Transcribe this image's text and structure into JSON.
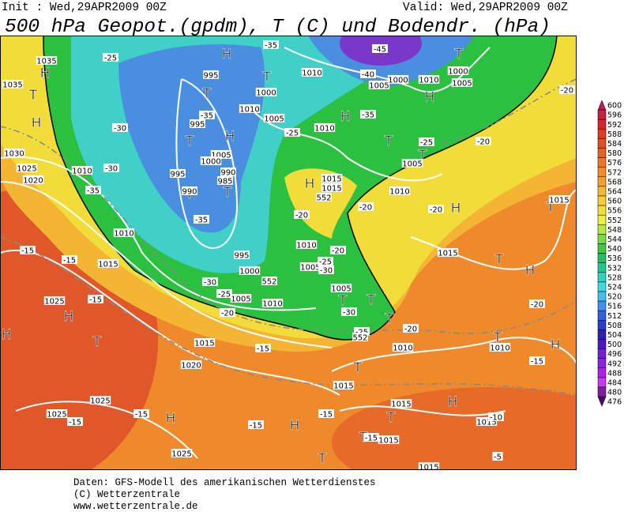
{
  "header": {
    "init": "Init : Wed,29APR2009 00Z",
    "valid": "Valid: Wed,29APR2009 00Z",
    "title": "500 hPa Geopot.(gpdm), T (C) und Bodendr. (hPa)"
  },
  "colorbar": {
    "labels": [
      600,
      596,
      592,
      588,
      584,
      580,
      576,
      572,
      568,
      564,
      560,
      556,
      552,
      548,
      544,
      540,
      536,
      532,
      528,
      524,
      520,
      516,
      512,
      508,
      504,
      500,
      496,
      492,
      488,
      484,
      480,
      476
    ],
    "colors": [
      "#b81c5a",
      "#c82040",
      "#d42828",
      "#dc3c20",
      "#e05020",
      "#e46424",
      "#ea7828",
      "#f08c2c",
      "#f4a030",
      "#f8b834",
      "#f8cc38",
      "#f4e03c",
      "#e8f040",
      "#b8e840",
      "#80d840",
      "#40c840",
      "#20c060",
      "#20c890",
      "#30d0c0",
      "#40d8e0",
      "#40c0f0",
      "#4090f0",
      "#3060e0",
      "#2840c8",
      "#3020b0",
      "#5018c0",
      "#7020d0",
      "#9020e0",
      "#b020e8",
      "#c838f0",
      "#8020a0",
      "#500860"
    ]
  },
  "map_labels": [
    "H",
    "T",
    "H",
    "T",
    "H",
    "T",
    "H",
    "H",
    "T",
    "T",
    "T",
    "H",
    "T",
    "T",
    "T",
    "H",
    "H",
    "T",
    "H",
    "T",
    "H",
    "H",
    "T",
    "T",
    "T",
    "T",
    "H",
    "T",
    "T",
    "H",
    "H",
    "T",
    "H",
    "T",
    "T",
    "1035",
    "1035",
    "1030",
    "1025",
    "1020",
    "1010",
    "1010",
    "1015",
    "1025",
    "1020",
    "1015",
    "1025",
    "1025",
    "1025",
    "995",
    "995",
    "1005",
    "1000",
    "995",
    "990",
    "985",
    "990",
    "995",
    "1000",
    "1005",
    "1010",
    "1010",
    "1000",
    "1010",
    "1005",
    "1010",
    "1005",
    "1000",
    "1010",
    "1000",
    "1005",
    "1005",
    "1010",
    "1015",
    "1015",
    "1010",
    "1005",
    "1005",
    "1015",
    "1015",
    "1010",
    "1010",
    "1015",
    "1015",
    "1015",
    "1015",
    "1015",
    "-25",
    "-30",
    "-30",
    "-35",
    "-35",
    "-35",
    "-25",
    "-35",
    "-40",
    "-45",
    "-35",
    "-25",
    "-20",
    "-20",
    "-20",
    "-20",
    "-20",
    "-20",
    "-25",
    "-30",
    "-30",
    "-25",
    "-20",
    "-30",
    "-25",
    "-20",
    "-20",
    "-15",
    "-15",
    "-15",
    "-15",
    "-15",
    "-15",
    "-15",
    "-15",
    "-15",
    "-10",
    "-5",
    "552",
    "552",
    "552",
    "-15"
  ],
  "footer": [
    "Daten: GFS-Modell des amerikanischen Wetterdienstes",
    "(C) Wetterzentrale",
    "www.wetterzentrale.de"
  ]
}
